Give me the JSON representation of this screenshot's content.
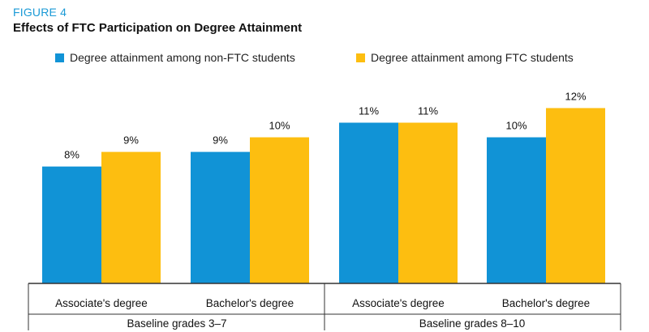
{
  "figure_label": "FIGURE 4",
  "colors": {
    "non_ftc": "#1193d6",
    "ftc": "#fdbe10",
    "label_blue": "#1b9ad6",
    "axis": "#333333"
  },
  "chart_data": {
    "type": "bar",
    "title": "Effects of FTC Participation on Degree Attainment",
    "categories": [
      "Associate's degree",
      "Bachelor's degree",
      "Associate's degree",
      "Bachelor's degree"
    ],
    "groups": [
      {
        "label": "Baseline grades 3–7",
        "categories": [
          0,
          1
        ]
      },
      {
        "label": "Baseline grades 8–10",
        "categories": [
          2,
          3
        ]
      }
    ],
    "series": [
      {
        "name": "Degree attainment among non-FTC students",
        "values": [
          8,
          9,
          11,
          10
        ],
        "labels": [
          "8%",
          "9%",
          "11%",
          "10%"
        ]
      },
      {
        "name": "Degree attainment among FTC students",
        "values": [
          9,
          10,
          11,
          12
        ],
        "labels": [
          "9%",
          "10%",
          "11%",
          "12%"
        ]
      }
    ],
    "xlabel": "",
    "ylabel": "",
    "ylim": [
      0,
      13.3
    ],
    "legend": "top",
    "grid": false
  }
}
